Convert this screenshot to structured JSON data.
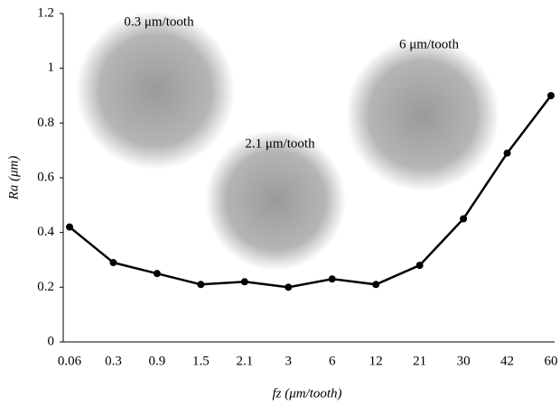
{
  "chart_data": {
    "type": "line",
    "x_label": "fz (μm/tooth)",
    "y_label": "Ra (μm)",
    "categories": [
      "0.06",
      "0.3",
      "0.9",
      "1.5",
      "2.1",
      "3",
      "6",
      "12",
      "21",
      "30",
      "42",
      "60"
    ],
    "values": [
      0.42,
      0.29,
      0.25,
      0.21,
      0.22,
      0.2,
      0.23,
      0.21,
      0.28,
      0.45,
      0.69,
      0.9
    ],
    "color": "#000000",
    "ylim": [
      0,
      1.2
    ],
    "yticks": [
      0,
      0.2,
      0.4,
      0.6,
      0.8,
      1,
      1.2
    ],
    "annotations": [
      "0.3 μm/tooth",
      "2.1 μm/tooth",
      "6 μm/tooth"
    ]
  }
}
